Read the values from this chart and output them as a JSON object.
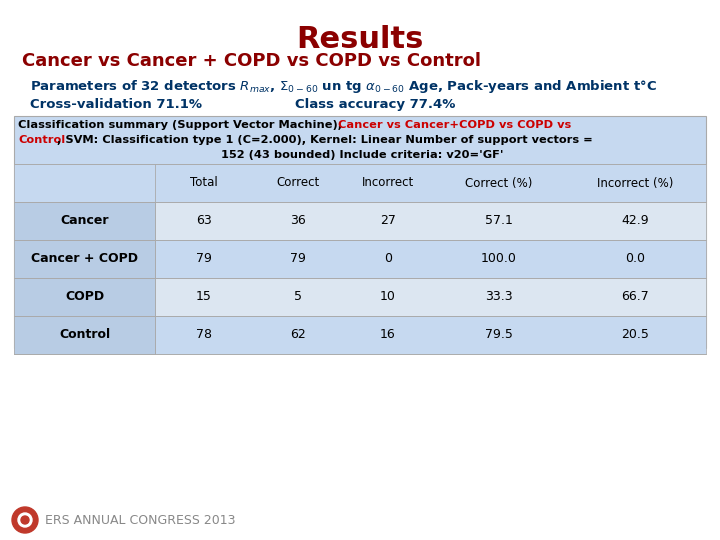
{
  "title": "Results",
  "subtitle": "Cancer vs Cancer + COPD vs COPD vs Control",
  "params_line": "Parameters of 32 detectors $R_{max}$, $\\Sigma_{0-60}$ un tg $\\alpha_{0-60}$ Age, Pack-years and Ambient t°C",
  "cross_val": "Cross-validation 71.1%",
  "class_acc": "Class accuracy 77.4%",
  "summary_line1_black": "Classification summary (Support Vector Machine), ",
  "summary_line1_red": "Cancer vs Cancer+COPD vs COPD vs",
  "summary_line2_red": "Control",
  "summary_line2_black": ", SVM: Classification type 1 (C=2.000), Kernel: Linear Number of support vectors =",
  "summary_line3": "152 (43 bounded) Include criteria: v20='GF'",
  "col_headers": [
    "",
    "Total",
    "Correct",
    "Incorrect",
    "Correct (%)",
    "Incorrect (%)"
  ],
  "rows": [
    [
      "Cancer",
      "63",
      "36",
      "27",
      "57.1",
      "42.9"
    ],
    [
      "Cancer + COPD",
      "79",
      "79",
      "0",
      "100.0",
      "0.0"
    ],
    [
      "COPD",
      "15",
      "5",
      "10",
      "33.3",
      "66.7"
    ],
    [
      "Control",
      "78",
      "62",
      "16",
      "79.5",
      "20.5"
    ]
  ],
  "title_color": "#8B0000",
  "subtitle_color": "#8B0000",
  "params_color": "#003366",
  "summary_red_color": "#CC0000",
  "summary_black_color": "#000000",
  "table_summary_bg": "#c6d9f0",
  "table_header_bg": "#c6d9f0",
  "table_row_bg_odd": "#dce6f1",
  "table_row_bg_even": "#c6d9f0",
  "row_label_bg": "#b8cce4",
  "background_color": "#ffffff",
  "ers_red": "#C0392B",
  "ers_text_color": "#888888",
  "border_color": "#aaaaaa"
}
